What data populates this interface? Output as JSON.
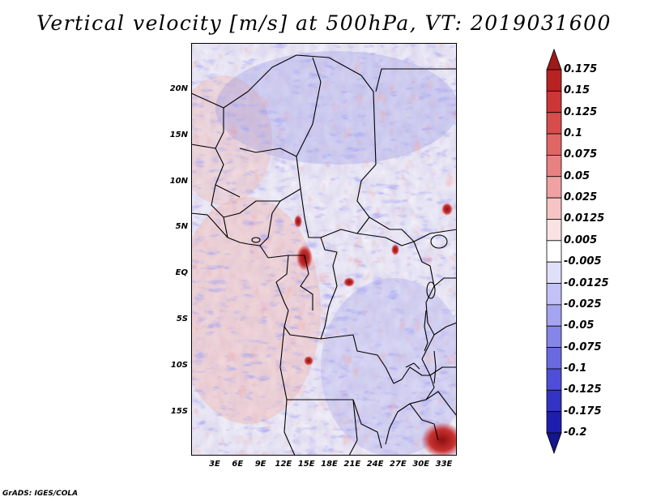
{
  "title": "Vertical velocity [m/s] at 500hPa, VT: 2019031600",
  "footer": "GrADS: IGES/COLA",
  "latitude_labels": [
    "20N",
    "15N",
    "10N",
    "5N",
    "EQ",
    "5S",
    "10S",
    "15S"
  ],
  "longitude_labels": [
    "3E",
    "6E",
    "9E",
    "12E",
    "15E",
    "18E",
    "21E",
    "24E",
    "27E",
    "30E",
    "33E"
  ],
  "colorbar": {
    "labels": [
      "0.175",
      "0.15",
      "0.125",
      "0.1",
      "0.075",
      "0.05",
      "0.025",
      "0.0125",
      "0.005",
      "-0.005",
      "-0.0125",
      "-0.025",
      "-0.05",
      "-0.075",
      "-0.1",
      "-0.125",
      "-0.175",
      "-0.2"
    ],
    "colors": [
      "#a01818",
      "#b82222",
      "#cc3636",
      "#d84c4c",
      "#e06666",
      "#e88282",
      "#f0a2a2",
      "#f6c4c4",
      "#fbe2e2",
      "#ffffff",
      "#e0e0fb",
      "#c2c2f6",
      "#a4a4f0",
      "#8686e8",
      "#6a6ae0",
      "#4e4ed8",
      "#3333c4",
      "#1e1eae",
      "#15158e"
    ]
  }
}
